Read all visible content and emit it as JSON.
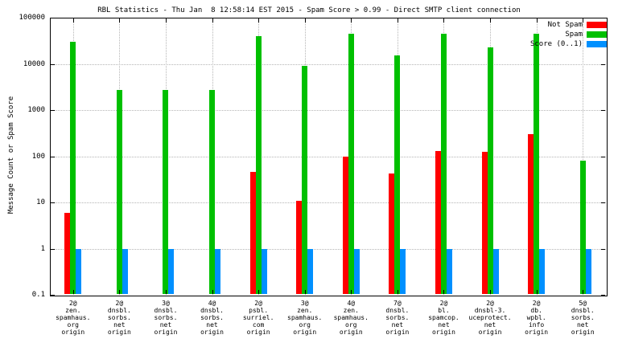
{
  "chart_data": {
    "type": "bar",
    "title": "RBL Statistics - Thu Jan  8 12:58:14 EST 2015 - Spam Score > 0.99 - Direct SMTP client connection",
    "ylabel": "Message Count or Spam Score",
    "y_scale": "log",
    "ylim": [
      0.1,
      100000
    ],
    "ytick_labels": [
      "0.1",
      "1",
      "10",
      "100",
      "1000",
      "10000",
      "100000"
    ],
    "ytick_values": [
      0.1,
      1,
      10,
      100,
      1000,
      10000,
      100000
    ],
    "grid": true,
    "legend_position": "top-right",
    "categories": [
      [
        "2@",
        "zen.",
        "spamhaus.",
        "org",
        "origin"
      ],
      [
        "2@",
        "dnsbl.",
        "sorbs.",
        "net",
        "origin"
      ],
      [
        "3@",
        "dnsbl.",
        "sorbs.",
        "net",
        "origin"
      ],
      [
        "4@",
        "dnsbl.",
        "sorbs.",
        "net",
        "origin"
      ],
      [
        "2@",
        "psbl.",
        "surriel.",
        "com",
        "origin"
      ],
      [
        "3@",
        "zen.",
        "spamhaus.",
        "org",
        "origin"
      ],
      [
        "4@",
        "zen.",
        "spamhaus.",
        "org",
        "origin"
      ],
      [
        "7@",
        "dnsbl.",
        "sorbs.",
        "net",
        "origin"
      ],
      [
        "2@",
        "bl.",
        "spamcop.",
        "net",
        "origin"
      ],
      [
        "2@",
        "dnsbl-3.",
        "uceprotect.",
        "net",
        "origin"
      ],
      [
        "2@",
        "db.",
        "wpbl.",
        "info",
        "origin"
      ],
      [
        "5@",
        "dnsbl.",
        "sorbs.",
        "net",
        "origin"
      ]
    ],
    "series": [
      {
        "name": "Not Spam",
        "color": "#ff0000",
        "values": [
          6,
          null,
          null,
          null,
          45,
          11,
          100,
          42,
          130,
          125,
          300,
          null
        ]
      },
      {
        "name": "Spam",
        "color": "#00c000",
        "values": [
          30000,
          2700,
          2700,
          2700,
          40000,
          9000,
          45000,
          15000,
          45000,
          23000,
          45000,
          80
        ]
      },
      {
        "name": "Score (0..1)",
        "color": "#0090ff",
        "values": [
          1,
          1,
          1,
          1,
          1,
          1,
          1,
          1,
          1,
          1,
          1,
          1
        ]
      }
    ]
  }
}
